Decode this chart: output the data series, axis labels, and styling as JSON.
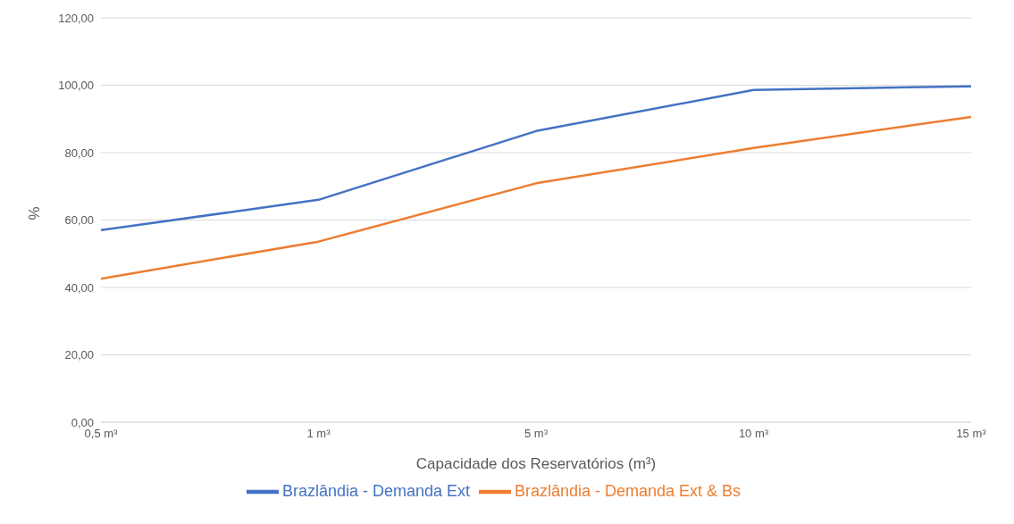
{
  "chart_data": {
    "type": "line",
    "xlabel": "Capacidade dos Reservatórios (m³)",
    "ylabel": "%",
    "categories": [
      "0,5 m³",
      "1 m³",
      "5 m³",
      "10 m³",
      "15 m³"
    ],
    "series": [
      {
        "name": "Brazlândia - Demanda Ext",
        "color": "#4472c4",
        "values": [
          57.0,
          66.0,
          86.4,
          98.6,
          99.7
        ]
      },
      {
        "name": "Brazlândia - Demanda Ext & Bs",
        "color": "#ed7d31",
        "values": [
          42.6,
          53.6,
          70.9,
          81.4,
          90.6
        ]
      }
    ],
    "ylim": [
      0,
      120
    ],
    "yticks": [
      {
        "value": 0,
        "label": "0,00"
      },
      {
        "value": 20,
        "label": "20,00"
      },
      {
        "value": 40,
        "label": "40,00"
      },
      {
        "value": 60,
        "label": "60,00"
      },
      {
        "value": 80,
        "label": "80,00"
      },
      {
        "value": 100,
        "label": "100,00"
      },
      {
        "value": 120,
        "label": "120,00"
      }
    ],
    "grid": "y",
    "legend": "bottom",
    "marker": "none",
    "line_style": "solid"
  }
}
